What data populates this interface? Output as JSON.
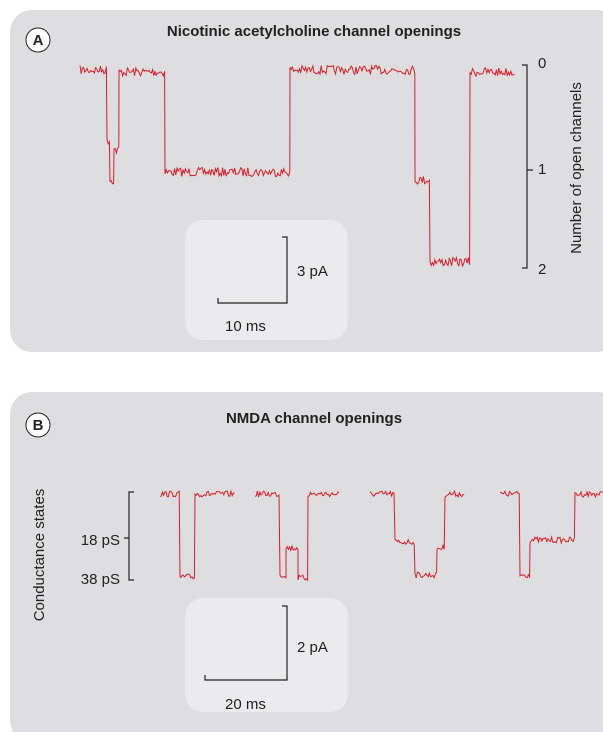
{
  "panels": [
    {
      "label": "A",
      "title": "Nicotinic acetylcholine channel openings",
      "axis_label": "Number of open channels",
      "levels": [
        0,
        1,
        2
      ],
      "scale_y": "3 pA",
      "scale_x": "10 ms"
    },
    {
      "label": "B",
      "title": "NMDA channel openings",
      "axis_label": "Conductance states",
      "levels": [
        "18 pS",
        "38 pS"
      ],
      "scale_y": "2 pA",
      "scale_x": "20 ms"
    }
  ]
}
